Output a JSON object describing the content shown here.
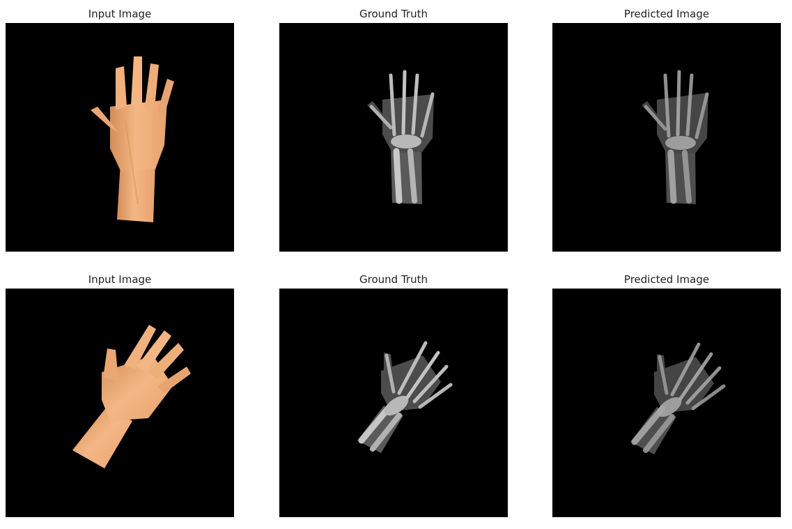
{
  "panels": [
    {
      "title": "Input Image",
      "kind": "rendered-hand"
    },
    {
      "title": "Ground Truth",
      "kind": "xray-hand"
    },
    {
      "title": "Predicted Image",
      "kind": "xray-hand-predicted"
    },
    {
      "title": "Input Image",
      "kind": "rendered-hand"
    },
    {
      "title": "Ground Truth",
      "kind": "xray-hand"
    },
    {
      "title": "Predicted Image",
      "kind": "xray-hand-predicted"
    }
  ],
  "colors": {
    "background": "#000000",
    "skin": "#f2b27e",
    "skin_shadow": "#d89560",
    "bone": "#cfcfcf"
  }
}
